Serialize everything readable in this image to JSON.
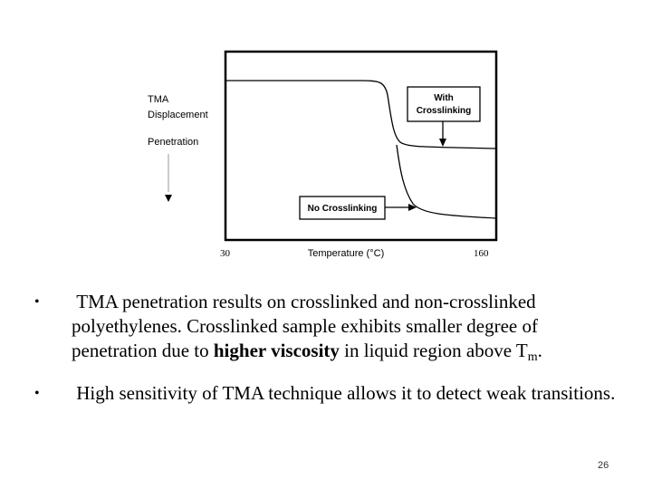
{
  "figure": {
    "y_label_line1": "TMA",
    "y_label_line2": "Displacement",
    "y_label_line3": "Penetration",
    "x_min_label": "30",
    "x_max_label": "160",
    "x_axis_label": "Temperature (°C)",
    "callout_with_line1": "With",
    "callout_with_line2": "Crosslinking",
    "callout_no": "No Crosslinking"
  },
  "chart_data": {
    "type": "line",
    "xlabel": "Temperature (°C)",
    "ylabel": "TMA Displacement",
    "x_ticks": [
      "30",
      "160"
    ],
    "series": [
      {
        "name": "With Crosslinking"
      },
      {
        "name": "No Crosslinking"
      }
    ]
  },
  "bullets": [
    {
      "text_a": "TMA penetration results on crosslinked and non-crosslinked polyethylenes. Crosslinked sample exhibits smaller degree of penetration due to ",
      "text_bold": "higher viscosity",
      "text_b": " in liquid region above T",
      "text_sub": "m",
      "text_end": "."
    },
    {
      "text_a": "High sensitivity of TMA technique allows it to detect weak transitions."
    }
  ],
  "page_number": "26"
}
